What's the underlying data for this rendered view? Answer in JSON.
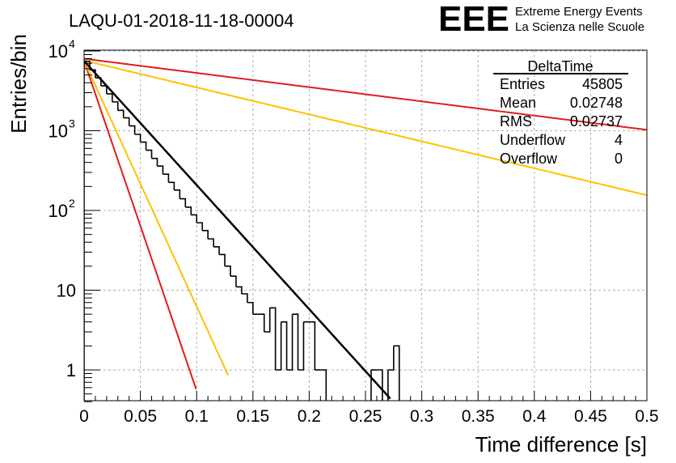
{
  "chart_data": {
    "type": "line",
    "title": "LAQU-01-2018-11-18-00004",
    "xlabel": "Time difference [s]",
    "ylabel": "Entries/bin",
    "y_scale": "log",
    "xlim": [
      0,
      0.5
    ],
    "ylim": [
      0.4,
      14000
    ],
    "grid": true,
    "x_ticks": [
      {
        "v": 0,
        "label": "0"
      },
      {
        "v": 0.05,
        "label": "0.05"
      },
      {
        "v": 0.1,
        "label": "0.1"
      },
      {
        "v": 0.15,
        "label": "0.15"
      },
      {
        "v": 0.2,
        "label": "0.2"
      },
      {
        "v": 0.25,
        "label": "0.25"
      },
      {
        "v": 0.3,
        "label": "0.3"
      },
      {
        "v": 0.35,
        "label": "0.35"
      },
      {
        "v": 0.4,
        "label": "0.4"
      },
      {
        "v": 0.45,
        "label": "0.45"
      },
      {
        "v": 0.5,
        "label": "0.5"
      }
    ],
    "y_ticks": [
      {
        "v": 1,
        "label": "1"
      },
      {
        "v": 10,
        "label": "10"
      },
      {
        "v": 100,
        "label": "10",
        "exp": "2"
      },
      {
        "v": 1000,
        "label": "10",
        "exp": "3"
      },
      {
        "v": 10000,
        "label": "10",
        "exp": "4"
      }
    ],
    "histogram": {
      "name": "DeltaTime",
      "bin_width": 0.005,
      "x_start": 0,
      "values": [
        7400,
        5800,
        4600,
        3650,
        2900,
        2300,
        1800,
        1450,
        1150,
        900,
        720,
        570,
        450,
        360,
        285,
        225,
        180,
        140,
        110,
        88,
        70,
        56,
        44,
        35,
        28,
        20,
        15,
        11,
        9,
        7,
        5,
        5,
        3,
        6,
        1,
        4,
        1,
        5,
        1,
        4,
        4,
        1,
        1,
        0,
        0,
        0,
        0,
        0,
        0,
        0,
        0,
        1,
        1,
        0,
        1,
        2
      ]
    },
    "series": [
      {
        "name": "fit",
        "color": "#000000",
        "x0": 0,
        "y0": 7500,
        "tau": 0.0279,
        "x_end": 0.272
      },
      {
        "name": "red-steep",
        "color": "#e41a1c",
        "x0": 0,
        "y0": 7500,
        "tau": 0.0105,
        "x_end": 0.0995
      },
      {
        "name": "orange-steep",
        "color": "#ffc000",
        "x0": 0,
        "y0": 7500,
        "tau": 0.0141,
        "x_end": 0.128
      },
      {
        "name": "red-flat",
        "color": "#e41a1c",
        "x0": 0,
        "y0": 8000,
        "tau": 0.2435,
        "x_end": 0.5
      },
      {
        "name": "orange-flat",
        "color": "#ffc000",
        "x0": 0,
        "y0": 7600,
        "tau": 0.1285,
        "x_end": 0.5
      }
    ],
    "stats_box": {
      "title": "DeltaTime",
      "rows": [
        {
          "label": "Entries",
          "value": "45805"
        },
        {
          "label": "Mean",
          "value": "0.02748"
        },
        {
          "label": "RMS",
          "value": "0.02737"
        },
        {
          "label": "Underflow",
          "value": "4"
        },
        {
          "label": "Overflow",
          "value": "0"
        }
      ]
    }
  },
  "logo": {
    "text": "EEE",
    "line1": "Extreme Energy Events",
    "line2": "La Scienza nelle Scuole",
    "color": "#1a1aff"
  }
}
